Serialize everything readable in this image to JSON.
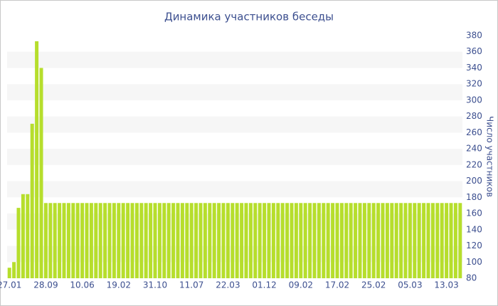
{
  "chart_data": {
    "type": "bar",
    "title": "Динамика участников беседы",
    "y_label": "Число участников",
    "categories": [
      "27.01",
      null,
      null,
      null,
      null,
      null,
      null,
      null,
      "28.09",
      null,
      null,
      null,
      null,
      null,
      null,
      null,
      "10.06",
      null,
      null,
      null,
      null,
      null,
      null,
      null,
      "19.02",
      null,
      null,
      null,
      null,
      null,
      null,
      null,
      "31.10",
      null,
      null,
      null,
      null,
      null,
      null,
      null,
      "11.07",
      null,
      null,
      null,
      null,
      null,
      null,
      null,
      "22.03",
      null,
      null,
      null,
      null,
      null,
      null,
      null,
      "01.12",
      null,
      null,
      null,
      null,
      null,
      null,
      null,
      "09.02",
      null,
      null,
      null,
      null,
      null,
      null,
      null,
      "17.02",
      null,
      null,
      null,
      null,
      null,
      null,
      null,
      "25.02",
      null,
      null,
      null,
      null,
      null,
      null,
      null,
      "05.03",
      null,
      null,
      null,
      null,
      null,
      null,
      null,
      "13.03",
      null,
      null,
      null
    ],
    "values": [
      93,
      100,
      167,
      184,
      184,
      271,
      373,
      340,
      173,
      173,
      173,
      173,
      173,
      173,
      173,
      173,
      173,
      173,
      173,
      173,
      173,
      173,
      173,
      173,
      173,
      173,
      173,
      173,
      173,
      173,
      173,
      173,
      173,
      173,
      173,
      173,
      173,
      173,
      173,
      173,
      173,
      173,
      173,
      173,
      173,
      173,
      173,
      173,
      173,
      173,
      173,
      173,
      173,
      173,
      173,
      173,
      173,
      173,
      173,
      173,
      173,
      173,
      173,
      173,
      173,
      173,
      173,
      173,
      173,
      173,
      173,
      173,
      173,
      173,
      173,
      173,
      173,
      173,
      173,
      173,
      173,
      173,
      173,
      173,
      173,
      173,
      173,
      173,
      173,
      173,
      173,
      173,
      173,
      173,
      173,
      173,
      173,
      173,
      173,
      173
    ],
    "color": "#b6de2c",
    "ylim": [
      80,
      380
    ],
    "yticks": [
      80,
      100,
      120,
      140,
      160,
      180,
      200,
      220,
      240,
      260,
      280,
      300,
      320,
      340,
      360,
      380
    ],
    "y_axis_side": "right",
    "grid": true
  }
}
